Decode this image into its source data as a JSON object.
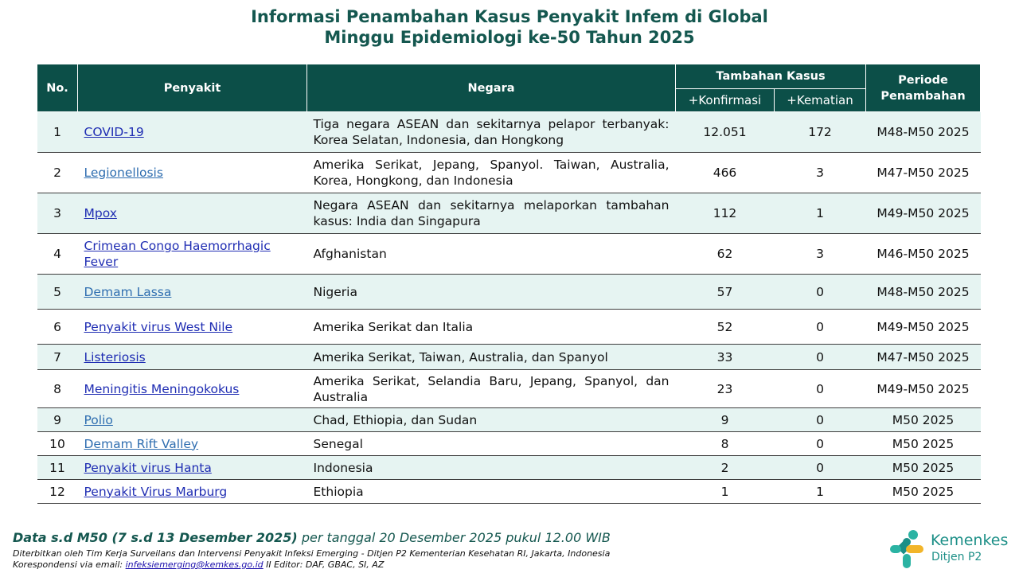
{
  "title": {
    "line1": "Informasi Penambahan Kasus Penyakit Infem di Global",
    "line2": "Minggu Epidemiologi ke-50 Tahun 2025"
  },
  "table": {
    "headers": {
      "no": "No.",
      "penyakit": "Penyakit",
      "negara": "Negara",
      "tambahan_kasus": "Tambahan Kasus",
      "konfirmasi": "+Konfirmasi",
      "kematian": "+Kematian",
      "periode": "Periode Penambahan"
    },
    "rows": [
      {
        "no": "1",
        "penyakit": "COVID-19",
        "link_color": "#1f2db3",
        "negara": "Tiga negara ASEAN dan sekitarnya pelapor terbanyak: Korea Selatan, Indonesia, dan Hongkong",
        "konfirmasi": "12.051",
        "kematian": "172",
        "periode": "M48-M50 2025"
      },
      {
        "no": "2",
        "penyakit": "Legionellosis",
        "link_color": "#2f6eb0",
        "negara": "Amerika Serikat, Jepang, Spanyol. Taiwan, Australia, Korea, Hongkong, dan Indonesia",
        "konfirmasi": "466",
        "kematian": "3",
        "periode": "M47-M50 2025"
      },
      {
        "no": "3",
        "penyakit": "Mpox",
        "link_color": "#1f2db3",
        "negara": "Negara ASEAN dan sekitarnya melaporkan tambahan kasus: India dan Singapura",
        "konfirmasi": "112",
        "kematian": "1",
        "periode": "M49-M50 2025"
      },
      {
        "no": "4",
        "penyakit": "Crimean Congo Haemorrhagic Fever",
        "link_color": "#1f2db3",
        "negara": "Afghanistan",
        "konfirmasi": "62",
        "kematian": "3",
        "periode": "M46-M50 2025"
      },
      {
        "no": "5",
        "penyakit": "Demam Lassa",
        "link_color": "#2f6eb0",
        "negara": "Nigeria",
        "konfirmasi": "57",
        "kematian": "0",
        "periode": "M48-M50 2025"
      },
      {
        "no": "6",
        "penyakit": "Penyakit virus West Nile",
        "link_color": "#1f2db3",
        "negara": "Amerika Serikat dan Italia",
        "konfirmasi": "52",
        "kematian": "0",
        "periode": "M49-M50 2025"
      },
      {
        "no": "7",
        "penyakit": "Listeriosis",
        "link_color": "#1f2db3",
        "negara": "Amerika Serikat, Taiwan, Australia, dan Spanyol",
        "konfirmasi": "33",
        "kematian": "0",
        "periode": "M47-M50 2025"
      },
      {
        "no": "8",
        "penyakit": "Meningitis Meningokokus",
        "link_color": "#1f2db3",
        "negara": "Amerika Serikat, Selandia Baru, Jepang, Spanyol, dan Australia",
        "konfirmasi": "23",
        "kematian": "0",
        "periode": "M49-M50 2025"
      },
      {
        "no": "9",
        "penyakit": "Polio",
        "link_color": "#2f6eb0",
        "negara": "Chad, Ethiopia, dan Sudan",
        "konfirmasi": "9",
        "kematian": "0",
        "periode": "M50 2025"
      },
      {
        "no": "10",
        "penyakit": "Demam Rift Valley",
        "link_color": "#2f6eb0",
        "negara": "Senegal",
        "konfirmasi": "8",
        "kematian": "0",
        "periode": "M50 2025"
      },
      {
        "no": "11",
        "penyakit": "Penyakit virus Hanta",
        "link_color": "#1f2db3",
        "negara": "Indonesia",
        "konfirmasi": "2",
        "kematian": "0",
        "periode": "M50 2025"
      },
      {
        "no": "12",
        "penyakit": "Penyakit Virus Marburg",
        "link_color": "#1f2db3",
        "negara": "Ethiopia",
        "konfirmasi": "1",
        "kematian": "1",
        "periode": "M50 2025"
      }
    ]
  },
  "footer": {
    "data_bold": "Data s.d M50 (7 s.d 13 Desember 2025)",
    "data_rest": " per tanggal 20 Desember 2025 pukul 12.00 WIB",
    "publisher": "Diterbitkan oleh Tim Kerja Surveilans dan Intervensi Penyakit Infeksi Emerging - Ditjen P2 Kementerian Kesehatan RI, Jakarta, Indonesia",
    "correspondence_label": "Korespondensi via email: ",
    "email": "infeksiemerging@kemkes.go.id",
    "editor": " II Editor: DAF, GBAC, SI, AZ"
  },
  "logo": {
    "name": "Kemenkes",
    "sub": "Ditjen P2"
  },
  "colors": {
    "header_bg": "#0c4f48",
    "title": "#14574f",
    "row_alt": "#e6f4f2",
    "logo": "#1c8f87"
  }
}
